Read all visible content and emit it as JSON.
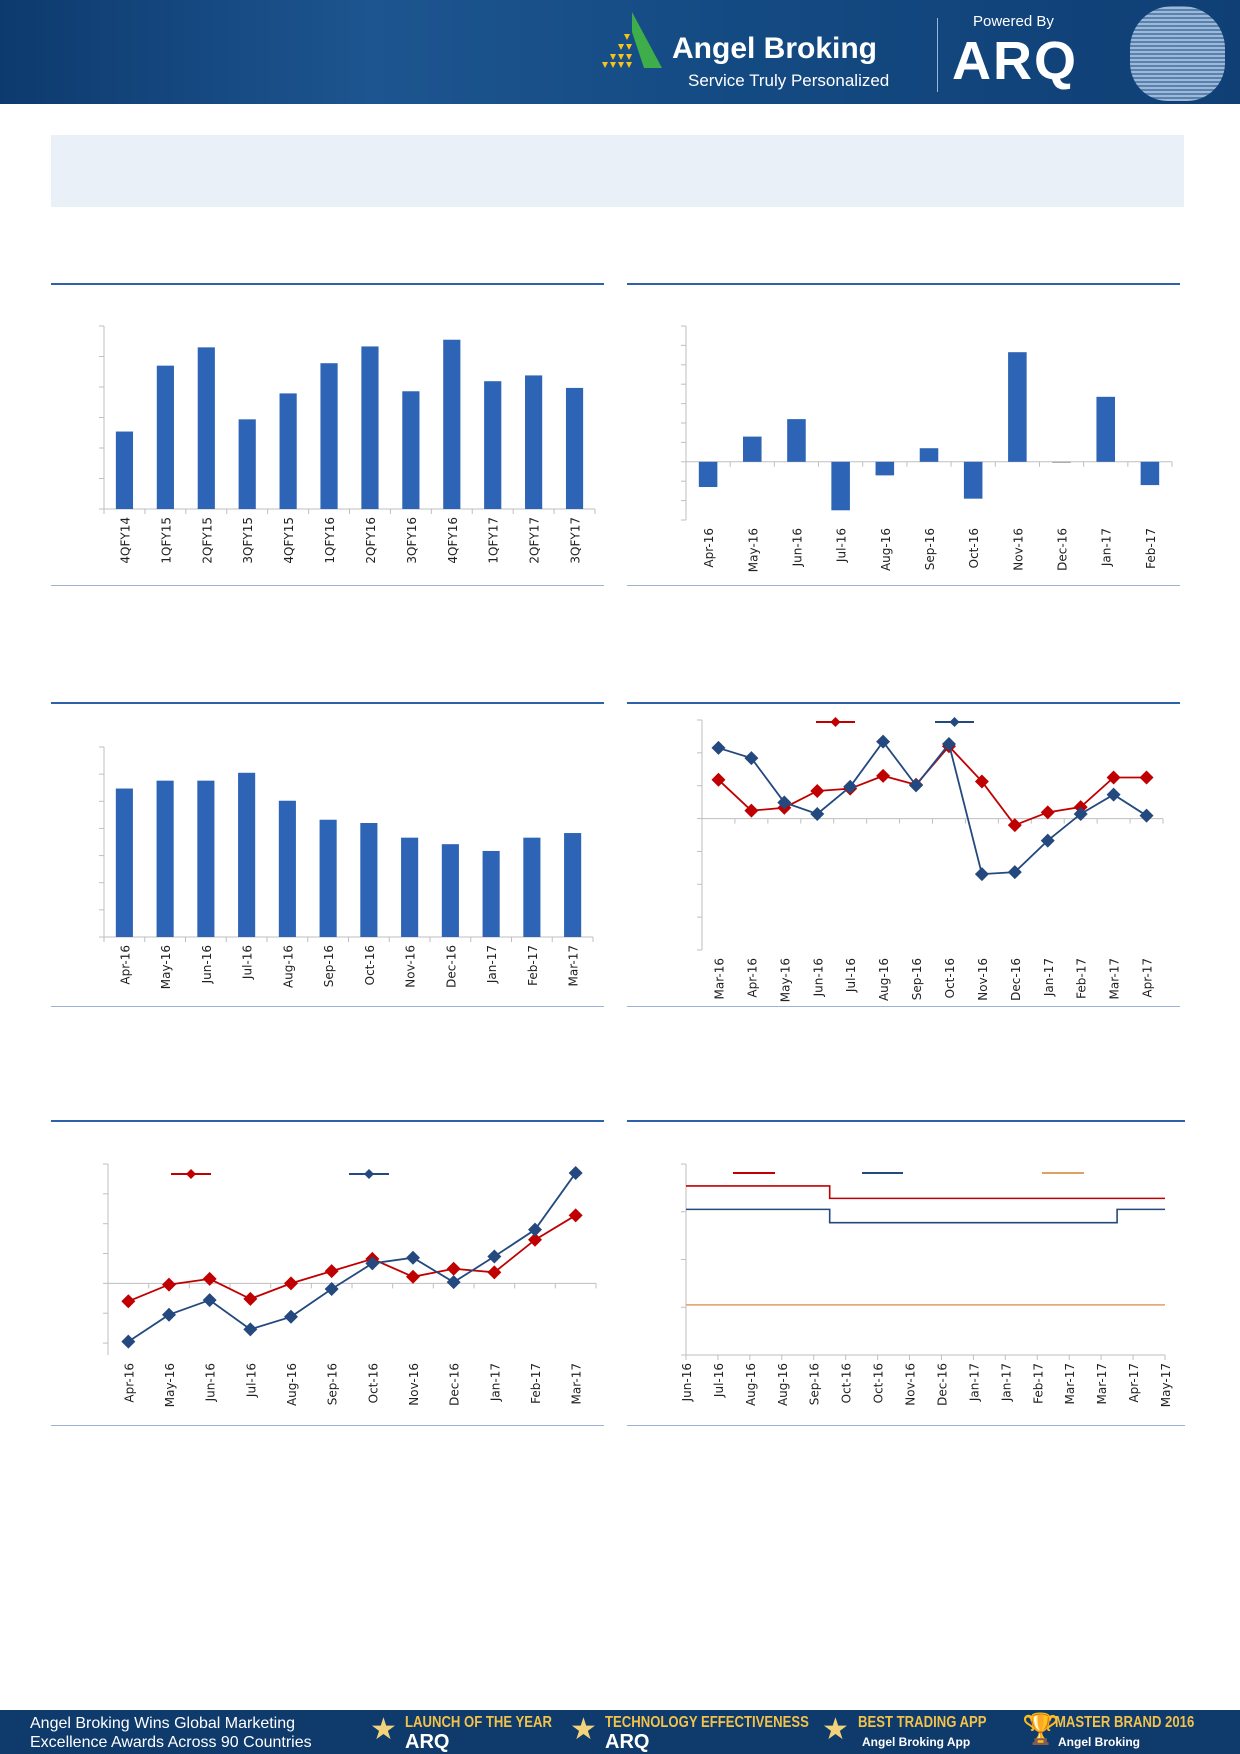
{
  "header": {
    "brand": "Angel Broking",
    "tagline": "Service Truly Personalized",
    "powered_by": "Powered By",
    "arq": "ARQ"
  },
  "colors": {
    "bar": "#2e64b5",
    "red": "#c00000",
    "blue": "#24497f",
    "orange": "#e0a060",
    "axis": "#bfbfbf"
  },
  "chart_data": [
    {
      "type": "bar",
      "categories": [
        "4QFY14",
        "1QFY15",
        "2QFY15",
        "3QFY15",
        "4QFY15",
        "1QFY16",
        "2QFY16",
        "3QFY16",
        "4QFY16",
        "1QFY17",
        "2QFY17",
        "3QFY17"
      ],
      "values": [
        2.54,
        4.7,
        5.3,
        2.94,
        3.79,
        4.78,
        5.33,
        3.86,
        5.55,
        4.19,
        4.38,
        3.97
      ],
      "ylim": [
        0,
        6
      ],
      "grid": false
    },
    {
      "type": "bar",
      "categories": [
        "Apr-16",
        "May-16",
        "Jun-16",
        "Jul-16",
        "Aug-16",
        "Sep-16",
        "Oct-16",
        "Nov-16",
        "Dec-16",
        "Jan-17",
        "Feb-17"
      ],
      "values": [
        -1.3,
        1.3,
        2.2,
        -2.5,
        -0.7,
        0.7,
        -1.9,
        5.65,
        0,
        3.35,
        -1.2
      ],
      "ylim": [
        -3,
        7
      ],
      "grid": false
    },
    {
      "type": "bar",
      "categories": [
        "Apr-16",
        "May-16",
        "Jun-16",
        "Jul-16",
        "Aug-16",
        "Sep-16",
        "Oct-16",
        "Nov-16",
        "Dec-16",
        "Jan-17",
        "Feb-17",
        "Mar-17"
      ],
      "values": [
        5.47,
        5.76,
        5.76,
        6.05,
        5.02,
        4.32,
        4.2,
        3.66,
        3.42,
        3.17,
        3.66,
        3.83
      ],
      "ylim": [
        0,
        7
      ],
      "grid": false
    },
    {
      "type": "line",
      "categories": [
        "Mar-16",
        "Apr-16",
        "May-16",
        "Jun-16",
        "Jul-16",
        "Aug-16",
        "Sep-16",
        "Oct-16",
        "Nov-16",
        "Dec-16",
        "Jan-17",
        "Feb-17",
        "Mar-17",
        "Apr-17"
      ],
      "series": [
        {
          "color": "#c00000",
          "marker": "diamond",
          "values": [
            1.18,
            0.24,
            0.33,
            0.84,
            0.91,
            1.3,
            1.03,
            2.2,
            1.13,
            -0.2,
            0.19,
            0.35,
            1.25,
            1.25
          ]
        },
        {
          "color": "#24497f",
          "marker": "diamond",
          "values": [
            2.15,
            1.84,
            0.49,
            0.14,
            0.97,
            2.34,
            1.01,
            2.27,
            -1.69,
            -1.63,
            -0.67,
            0.14,
            0.73,
            0.09
          ]
        }
      ],
      "ylim": [
        -4,
        3
      ],
      "legend": "top-center",
      "grid": false
    },
    {
      "type": "line",
      "categories": [
        "Apr-16",
        "May-16",
        "Jun-16",
        "Jul-16",
        "Aug-16",
        "Sep-16",
        "Oct-16",
        "Nov-16",
        "Dec-16",
        "Jan-17",
        "Feb-17",
        "Mar-17"
      ],
      "series": [
        {
          "color": "#c00000",
          "marker": "diamond",
          "values": [
            -0.6,
            -0.04,
            0.15,
            -0.52,
            0,
            0.41,
            0.82,
            0.22,
            0.49,
            0.37,
            1.46,
            2.28
          ]
        },
        {
          "color": "#24497f",
          "marker": "diamond",
          "values": [
            -1.95,
            -1.05,
            -0.56,
            -1.54,
            -1.12,
            -0.19,
            0.67,
            0.86,
            0.04,
            0.9,
            1.8,
            3.7
          ]
        }
      ],
      "ylim": [
        -2.4,
        4
      ],
      "legend": "top-left",
      "grid": false
    },
    {
      "type": "line",
      "step": true,
      "categories": [
        "Jun-16",
        "Jul-16",
        "Aug-16",
        "Aug-16",
        "Sep-16",
        "Oct-16",
        "Oct-16",
        "Nov-16",
        "Dec-16",
        "Jan-17",
        "Jan-17",
        "Feb-17",
        "Mar-17",
        "Mar-17",
        "Apr-17",
        "May-17"
      ],
      "series": [
        {
          "color": "#c00000",
          "values": [
            3.54,
            3.54,
            3.54,
            3.54,
            3.54,
            3.28,
            3.28,
            3.28,
            3.28,
            3.28,
            3.28,
            3.28,
            3.28,
            3.28,
            3.28,
            3.28
          ]
        },
        {
          "color": "#24497f",
          "values": [
            3.05,
            3.05,
            3.05,
            3.05,
            3.05,
            2.77,
            2.77,
            2.77,
            2.77,
            2.77,
            2.77,
            2.77,
            2.77,
            2.77,
            3.05,
            3.05
          ]
        },
        {
          "color": "#e0a060",
          "values": [
            1.05,
            1.05,
            1.05,
            1.05,
            1.05,
            1.05,
            1.05,
            1.05,
            1.05,
            1.05,
            1.05,
            1.05,
            1.05,
            1.05,
            1.05,
            1.05
          ]
        }
      ],
      "ylim": [
        0,
        4
      ],
      "legend": "top-left",
      "grid": false
    }
  ],
  "footer": {
    "line1": "Angel Broking Wins Global Marketing",
    "line2": "Excellence Awards Across 90 Countries",
    "awards": [
      {
        "title": "LAUNCH OF THE YEAR",
        "sub": "ARQ"
      },
      {
        "title": "TECHNOLOGY EFFECTIVENESS",
        "sub": "ARQ"
      },
      {
        "title": "BEST TRADING APP",
        "sub": "Angel Broking App"
      },
      {
        "title": "MASTER BRAND 2016",
        "sub": "Angel Broking"
      }
    ]
  }
}
